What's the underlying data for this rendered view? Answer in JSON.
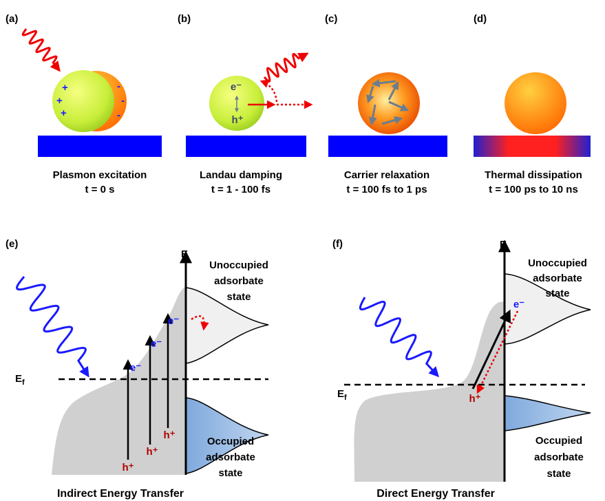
{
  "top_panels": [
    {
      "label": "(a)",
      "caption": "Plasmon excitation",
      "time": "t = 0 s"
    },
    {
      "label": "(b)",
      "caption": "Landau damping",
      "time": "t = 1 - 100 fs"
    },
    {
      "label": "(c)",
      "caption": "Carrier relaxation",
      "time": "t = 100 fs to 1 ps"
    },
    {
      "label": "(d)",
      "caption": "Thermal dissipation",
      "time": "t = 100 ps to 10 ns"
    }
  ],
  "panel_a_charges": {
    "plus": [
      "+",
      "+",
      "+"
    ],
    "minus": [
      "-",
      "-",
      "-"
    ]
  },
  "panel_b_carriers": {
    "electron": "e⁻",
    "hole": "h⁺"
  },
  "bottom_panels": [
    {
      "label": "(e)",
      "axis": "E",
      "fermi": {
        "main": "E",
        "sub": "f"
      },
      "unoccupied": [
        "Unoccupied",
        "adsorbate",
        "state"
      ],
      "occupied": [
        "Occupied",
        "adsorbate",
        "state"
      ],
      "electrons": [
        "e⁻",
        "e⁻",
        "e⁻"
      ],
      "holes": [
        "h⁺",
        "h⁺",
        "h⁺"
      ],
      "title": "Indirect Energy Transfer"
    },
    {
      "label": "(f)",
      "axis": "E",
      "fermi": {
        "main": "E",
        "sub": "f"
      },
      "unoccupied": [
        "Unoccupied",
        "adsorbate",
        "state"
      ],
      "occupied": [
        "Occupied",
        "adsorbate",
        "state"
      ],
      "electrons": [
        "e⁻"
      ],
      "holes": [
        "h⁺"
      ],
      "title": "Direct Energy Transfer"
    }
  ]
}
